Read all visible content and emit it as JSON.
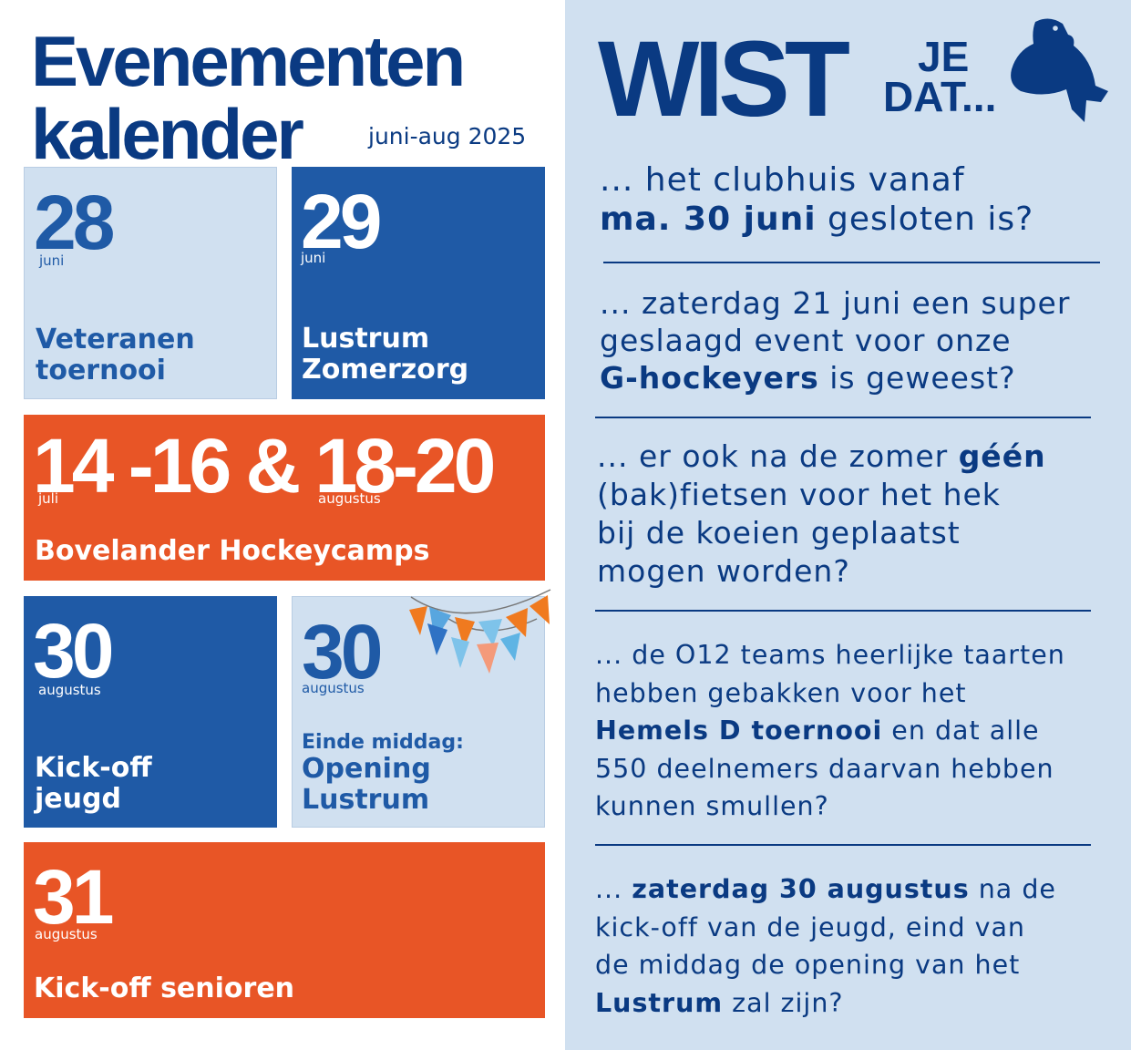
{
  "header": {
    "title_line1": "Evenementen",
    "title_line2": "kalender",
    "period": "juni-aug 2025"
  },
  "events": [
    {
      "day": "28",
      "month": "juni",
      "label_line1": "Veteranen",
      "label_line2": "toernooi"
    },
    {
      "day": "29",
      "month": "juni",
      "label_line1": "Lustrum",
      "label_line2": "Zomerzorg"
    },
    {
      "day": "14 -16 & 18-20",
      "month_a": "juli",
      "month_b": "augustus",
      "label": "Bovelander Hockeycamps"
    },
    {
      "day": "30",
      "month": "augustus",
      "label_line1": "Kick-off",
      "label_line2": "jeugd"
    },
    {
      "day": "30",
      "month": "augustus",
      "pre_label": "Einde middag:",
      "label_line1": "Opening",
      "label_line2": "Lustrum"
    },
    {
      "day": "31",
      "month": "augustus",
      "label": "Kick-off senioren"
    }
  ],
  "wist": {
    "big": "WIST",
    "je": "JE",
    "dat": "DAT...",
    "facts": [
      {
        "t1": "... het clubhuis vanaf",
        "b1": "ma. 30 juni",
        "t2": " gesloten is?"
      },
      {
        "t1": "... zaterdag 21 juni een super",
        "t2": "geslaagd event voor onze",
        "b1": "G-hockeyers",
        "t3": " is geweest?"
      },
      {
        "t1": "... er ook na de zomer ",
        "b1": "géén",
        "t2": "(bak)fietsen voor het hek",
        "t3": "bij de koeien geplaatst",
        "t4": "mogen worden?"
      },
      {
        "t1": "... de O12 teams heerlijke taarten",
        "t2": "hebben gebakken voor het",
        "b1": "Hemels D toernooi",
        "t3": " en dat alle",
        "t4": "550 deelnemers daarvan hebben",
        "t5": "kunnen smullen?"
      },
      {
        "t1": "... ",
        "b1": "zaterdag 30 augustus",
        "t2": " na de",
        "t3": "kick-off van de jeugd, eind van",
        "t4": "de middag de opening van het",
        "b2": "Lustrum",
        "t5": " zal zijn?"
      }
    ]
  },
  "colors": {
    "navy": "#0a3a82",
    "blue": "#1f5aa6",
    "orange": "#e85526",
    "light": "#d0e0f0"
  },
  "icons": {
    "owl": "owl-ribbon-icon",
    "bunting": "bunting-flags-icon"
  }
}
